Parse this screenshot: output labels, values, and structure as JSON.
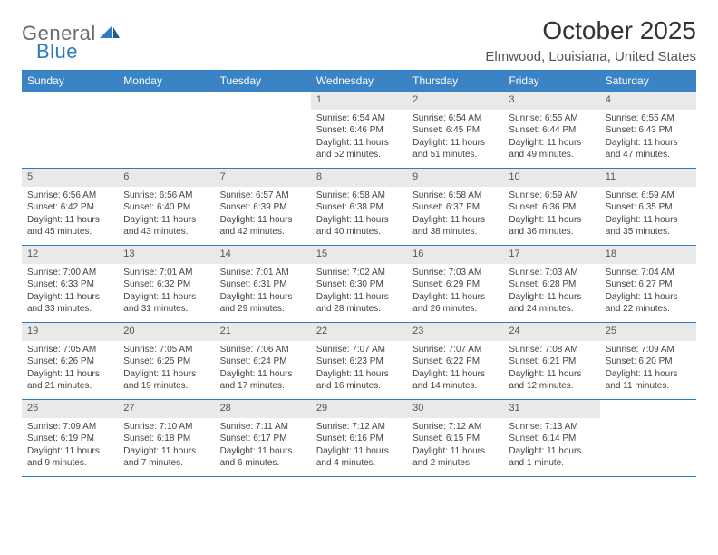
{
  "brand": {
    "text1": "General",
    "text2": "Blue"
  },
  "title": "October 2025",
  "location": "Elmwood, Louisiana, United States",
  "colors": {
    "header_bg": "#3a84c5",
    "header_text": "#ffffff",
    "rule": "#2f7bbf",
    "daynum_bg": "#e9e9e9",
    "body_bg": "#ffffff",
    "text": "#444444",
    "logo_gray": "#6a6a6a",
    "logo_blue": "#2f7bbf"
  },
  "dow": [
    "Sunday",
    "Monday",
    "Tuesday",
    "Wednesday",
    "Thursday",
    "Friday",
    "Saturday"
  ],
  "weeks": [
    [
      {
        "n": "",
        "sr": "",
        "ss": "",
        "dl": ""
      },
      {
        "n": "",
        "sr": "",
        "ss": "",
        "dl": ""
      },
      {
        "n": "",
        "sr": "",
        "ss": "",
        "dl": ""
      },
      {
        "n": "1",
        "sr": "Sunrise: 6:54 AM",
        "ss": "Sunset: 6:46 PM",
        "dl": "Daylight: 11 hours and 52 minutes."
      },
      {
        "n": "2",
        "sr": "Sunrise: 6:54 AM",
        "ss": "Sunset: 6:45 PM",
        "dl": "Daylight: 11 hours and 51 minutes."
      },
      {
        "n": "3",
        "sr": "Sunrise: 6:55 AM",
        "ss": "Sunset: 6:44 PM",
        "dl": "Daylight: 11 hours and 49 minutes."
      },
      {
        "n": "4",
        "sr": "Sunrise: 6:55 AM",
        "ss": "Sunset: 6:43 PM",
        "dl": "Daylight: 11 hours and 47 minutes."
      }
    ],
    [
      {
        "n": "5",
        "sr": "Sunrise: 6:56 AM",
        "ss": "Sunset: 6:42 PM",
        "dl": "Daylight: 11 hours and 45 minutes."
      },
      {
        "n": "6",
        "sr": "Sunrise: 6:56 AM",
        "ss": "Sunset: 6:40 PM",
        "dl": "Daylight: 11 hours and 43 minutes."
      },
      {
        "n": "7",
        "sr": "Sunrise: 6:57 AM",
        "ss": "Sunset: 6:39 PM",
        "dl": "Daylight: 11 hours and 42 minutes."
      },
      {
        "n": "8",
        "sr": "Sunrise: 6:58 AM",
        "ss": "Sunset: 6:38 PM",
        "dl": "Daylight: 11 hours and 40 minutes."
      },
      {
        "n": "9",
        "sr": "Sunrise: 6:58 AM",
        "ss": "Sunset: 6:37 PM",
        "dl": "Daylight: 11 hours and 38 minutes."
      },
      {
        "n": "10",
        "sr": "Sunrise: 6:59 AM",
        "ss": "Sunset: 6:36 PM",
        "dl": "Daylight: 11 hours and 36 minutes."
      },
      {
        "n": "11",
        "sr": "Sunrise: 6:59 AM",
        "ss": "Sunset: 6:35 PM",
        "dl": "Daylight: 11 hours and 35 minutes."
      }
    ],
    [
      {
        "n": "12",
        "sr": "Sunrise: 7:00 AM",
        "ss": "Sunset: 6:33 PM",
        "dl": "Daylight: 11 hours and 33 minutes."
      },
      {
        "n": "13",
        "sr": "Sunrise: 7:01 AM",
        "ss": "Sunset: 6:32 PM",
        "dl": "Daylight: 11 hours and 31 minutes."
      },
      {
        "n": "14",
        "sr": "Sunrise: 7:01 AM",
        "ss": "Sunset: 6:31 PM",
        "dl": "Daylight: 11 hours and 29 minutes."
      },
      {
        "n": "15",
        "sr": "Sunrise: 7:02 AM",
        "ss": "Sunset: 6:30 PM",
        "dl": "Daylight: 11 hours and 28 minutes."
      },
      {
        "n": "16",
        "sr": "Sunrise: 7:03 AM",
        "ss": "Sunset: 6:29 PM",
        "dl": "Daylight: 11 hours and 26 minutes."
      },
      {
        "n": "17",
        "sr": "Sunrise: 7:03 AM",
        "ss": "Sunset: 6:28 PM",
        "dl": "Daylight: 11 hours and 24 minutes."
      },
      {
        "n": "18",
        "sr": "Sunrise: 7:04 AM",
        "ss": "Sunset: 6:27 PM",
        "dl": "Daylight: 11 hours and 22 minutes."
      }
    ],
    [
      {
        "n": "19",
        "sr": "Sunrise: 7:05 AM",
        "ss": "Sunset: 6:26 PM",
        "dl": "Daylight: 11 hours and 21 minutes."
      },
      {
        "n": "20",
        "sr": "Sunrise: 7:05 AM",
        "ss": "Sunset: 6:25 PM",
        "dl": "Daylight: 11 hours and 19 minutes."
      },
      {
        "n": "21",
        "sr": "Sunrise: 7:06 AM",
        "ss": "Sunset: 6:24 PM",
        "dl": "Daylight: 11 hours and 17 minutes."
      },
      {
        "n": "22",
        "sr": "Sunrise: 7:07 AM",
        "ss": "Sunset: 6:23 PM",
        "dl": "Daylight: 11 hours and 16 minutes."
      },
      {
        "n": "23",
        "sr": "Sunrise: 7:07 AM",
        "ss": "Sunset: 6:22 PM",
        "dl": "Daylight: 11 hours and 14 minutes."
      },
      {
        "n": "24",
        "sr": "Sunrise: 7:08 AM",
        "ss": "Sunset: 6:21 PM",
        "dl": "Daylight: 11 hours and 12 minutes."
      },
      {
        "n": "25",
        "sr": "Sunrise: 7:09 AM",
        "ss": "Sunset: 6:20 PM",
        "dl": "Daylight: 11 hours and 11 minutes."
      }
    ],
    [
      {
        "n": "26",
        "sr": "Sunrise: 7:09 AM",
        "ss": "Sunset: 6:19 PM",
        "dl": "Daylight: 11 hours and 9 minutes."
      },
      {
        "n": "27",
        "sr": "Sunrise: 7:10 AM",
        "ss": "Sunset: 6:18 PM",
        "dl": "Daylight: 11 hours and 7 minutes."
      },
      {
        "n": "28",
        "sr": "Sunrise: 7:11 AM",
        "ss": "Sunset: 6:17 PM",
        "dl": "Daylight: 11 hours and 6 minutes."
      },
      {
        "n": "29",
        "sr": "Sunrise: 7:12 AM",
        "ss": "Sunset: 6:16 PM",
        "dl": "Daylight: 11 hours and 4 minutes."
      },
      {
        "n": "30",
        "sr": "Sunrise: 7:12 AM",
        "ss": "Sunset: 6:15 PM",
        "dl": "Daylight: 11 hours and 2 minutes."
      },
      {
        "n": "31",
        "sr": "Sunrise: 7:13 AM",
        "ss": "Sunset: 6:14 PM",
        "dl": "Daylight: 11 hours and 1 minute."
      },
      {
        "n": "",
        "sr": "",
        "ss": "",
        "dl": ""
      }
    ]
  ]
}
